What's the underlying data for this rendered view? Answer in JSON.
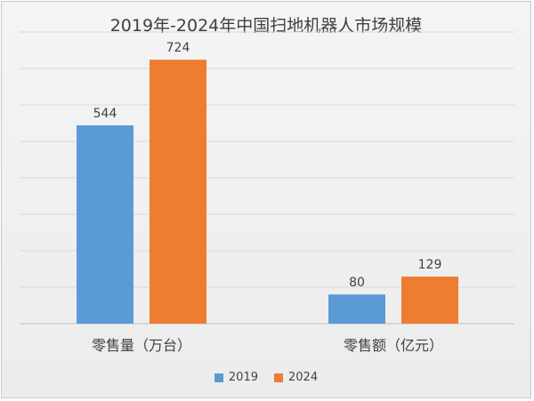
{
  "chart_data": {
    "type": "bar",
    "title": "2019年-2024年中国扫地机器人市场规模",
    "categories": [
      "零售量（万台）",
      "零售额（亿元）"
    ],
    "series": [
      {
        "name": "2019",
        "values": [
          544,
          80
        ],
        "color": "#5b9bd5"
      },
      {
        "name": "2024",
        "values": [
          724,
          129
        ],
        "color": "#ed7d31"
      }
    ],
    "ylim": [
      0,
      800
    ],
    "grid": true,
    "legend_position": "bottom"
  }
}
